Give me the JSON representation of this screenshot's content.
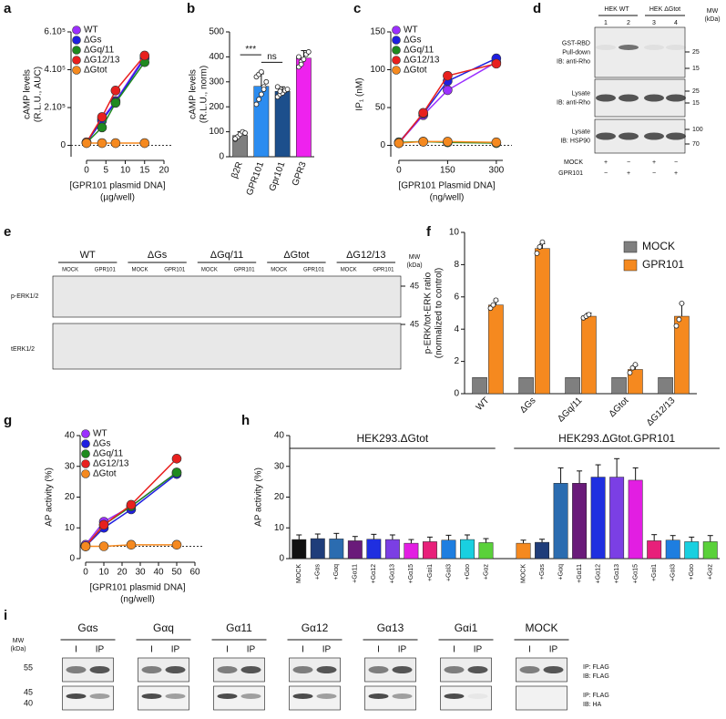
{
  "chart_data": [
    {
      "label": "a",
      "type": "line",
      "ylabel": [
        "cAMP levels",
        "(R.L.U., AUC)"
      ],
      "xlabel": [
        "[GPR101 plasmid DNA]",
        "(µg/well)"
      ],
      "x": [
        0,
        4,
        7.5,
        15
      ],
      "xlim": [
        -4,
        20
      ],
      "xticks": [
        0,
        5,
        10,
        15,
        20
      ],
      "ylim": [
        -60000,
        600000
      ],
      "yticks": [
        0,
        {
          "value": 200000,
          "label": "2.10⁵"
        },
        {
          "value": 400000,
          "label": "4.10⁵"
        },
        {
          "value": 600000,
          "label": "6.10⁵"
        }
      ],
      "hline": 0,
      "legend": "upper left",
      "series": [
        {
          "name": "WT",
          "color": "#9b30ff",
          "values": [
            15000,
            140000,
            235000,
            470000
          ]
        },
        {
          "name": "ΔGs",
          "color": "#1f1fe0",
          "values": [
            15000,
            130000,
            230000,
            460000
          ]
        },
        {
          "name": "ΔGq/11",
          "color": "#1f8a1f",
          "values": [
            14000,
            95000,
            225000,
            440000
          ]
        },
        {
          "name": "ΔG12/13",
          "color": "#e8201e",
          "values": [
            16000,
            150000,
            290000,
            475000
          ]
        },
        {
          "name": "ΔGtot",
          "color": "#f5891f",
          "values": [
            12000,
            12000,
            12000,
            12000
          ]
        }
      ]
    },
    {
      "label": "b",
      "type": "bar",
      "ylabel": [
        "cAMP levels",
        "(R.L.U., norm)"
      ],
      "categories": [
        "β2R",
        "GPR101",
        "Gpr101",
        "GPR3"
      ],
      "values": [
        85,
        282,
        262,
        395
      ],
      "errors": [
        15,
        50,
        18,
        30
      ],
      "colors": [
        "#7f7f7f",
        "#2b8cf0",
        "#1c4f8c",
        "#ee22ee"
      ],
      "points": [
        [
          70,
          80,
          90,
          100,
          95,
          72
        ],
        [
          210,
          230,
          250,
          280,
          300,
          320,
          330,
          340,
          270
        ],
        [
          240,
          250,
          255,
          265,
          270,
          280,
          262
        ],
        [
          360,
          380,
          390,
          410,
          420,
          400,
          370
        ]
      ],
      "ylim": [
        0,
        500
      ],
      "yticks": [
        0,
        100,
        200,
        300,
        400,
        500
      ],
      "annotations": [
        "***",
        "ns"
      ]
    },
    {
      "label": "c",
      "type": "line",
      "ylabel": [
        "IP₁ (nM)"
      ],
      "xlabel": [
        "[GPR101 Plasmid DNA]",
        "(ng/well)"
      ],
      "x": [
        0,
        75,
        150,
        300
      ],
      "xlim": [
        -25,
        320
      ],
      "xticks": [
        0,
        150,
        300
      ],
      "ylim": [
        -15,
        150
      ],
      "yticks": [
        0,
        50,
        100,
        150
      ],
      "hline": 0,
      "legend": "upper left",
      "series": [
        {
          "name": "WT",
          "color": "#9b30ff",
          "values": [
            3,
            40,
            73,
            110
          ]
        },
        {
          "name": "ΔGs",
          "color": "#1f1fe0",
          "values": [
            4,
            42,
            85,
            115
          ]
        },
        {
          "name": "ΔGq/11",
          "color": "#1f8a1f",
          "values": [
            4,
            5,
            4,
            3
          ]
        },
        {
          "name": "ΔG12/13",
          "color": "#e8201e",
          "values": [
            3,
            43,
            92,
            108
          ]
        },
        {
          "name": "ΔGtot",
          "color": "#f5891f",
          "values": [
            3,
            5,
            5,
            4
          ]
        }
      ]
    },
    {
      "label": "f",
      "type": "bar",
      "ylabel": [
        "p-ERK/tot-ERK ratio",
        "(normalized to control)"
      ],
      "categories": [
        "WT",
        "ΔGs",
        "ΔGq/11",
        "ΔGtot",
        "ΔG12/13"
      ],
      "series": [
        {
          "name": "MOCK",
          "color": "#7f7f7f",
          "values": [
            1,
            1,
            1,
            1,
            1
          ]
        },
        {
          "name": "GPR101",
          "color": "#f5891f",
          "values": [
            5.5,
            9,
            4.8,
            1.5,
            4.8
          ],
          "errors": [
            0.25,
            0.3,
            0.2,
            0.25,
            0.8
          ],
          "points": [
            [
              5.3,
              5.5,
              5.8
            ],
            [
              8.7,
              9.1,
              9.4
            ],
            [
              4.7,
              4.8,
              4.9
            ],
            [
              1.3,
              1.6,
              1.8
            ],
            [
              4.2,
              4.6,
              5.6
            ]
          ]
        }
      ],
      "ylim": [
        0,
        10
      ],
      "yticks": [
        0,
        2,
        4,
        6,
        8,
        10
      ],
      "legend": "upper right"
    },
    {
      "label": "g",
      "type": "line",
      "ylabel": [
        "AP activity (%)"
      ],
      "xlabel": [
        "[GPR101 plasmid DNA]",
        "(ng/well)"
      ],
      "x": [
        0,
        10,
        25,
        50
      ],
      "xlim": [
        -3,
        60
      ],
      "xticks": [
        0,
        10,
        20,
        30,
        40,
        50,
        60
      ],
      "ylim": [
        0,
        40
      ],
      "yticks": [
        0,
        10,
        20,
        30,
        40
      ],
      "hline": 4,
      "legend": "upper left",
      "series": [
        {
          "name": "WT",
          "color": "#9b30ff",
          "values": [
            4.5,
            12,
            17,
            28
          ]
        },
        {
          "name": "ΔGs",
          "color": "#1f1fe0",
          "values": [
            4,
            10,
            16,
            27.5
          ]
        },
        {
          "name": "ΔGq/11",
          "color": "#1f8a1f",
          "values": [
            4,
            11,
            17,
            28
          ]
        },
        {
          "name": "ΔG12/13",
          "color": "#e8201e",
          "values": [
            4,
            11,
            17.5,
            32.5
          ]
        },
        {
          "name": "ΔGtot",
          "color": "#f5891f",
          "values": [
            4,
            4,
            4.5,
            4.5
          ]
        }
      ]
    },
    {
      "label": "h",
      "type": "bar",
      "ylabel": [
        "AP activity (%)"
      ],
      "group_labels": [
        "HEK293.ΔGtot",
        "HEK293.ΔGtot.GPR101"
      ],
      "categories": [
        "MOCK",
        "+Gαs",
        "+Gαq",
        "+Gα11",
        "+Gα12",
        "+Gα13",
        "+Gα15",
        "+Gαi1",
        "+Gαi3",
        "+Gαo",
        "+Gαz",
        "MOCK",
        "+Gαs",
        "+Gαq",
        "+Gα11",
        "+Gα12",
        "+Gα13",
        "+Gα15",
        "+Gαi1",
        "+Gαi3",
        "+Gαo",
        "+Gαz"
      ],
      "values": [
        6.2,
        6.5,
        6.4,
        5.8,
        6.3,
        6.2,
        5,
        5.5,
        6,
        6.2,
        5.2,
        5,
        5.3,
        24.5,
        24.5,
        26.5,
        26.5,
        25.5,
        5.8,
        6,
        5.5,
        5.5
      ],
      "errors": [
        1.5,
        1.5,
        1.8,
        1.4,
        1.6,
        1.5,
        1.2,
        1.5,
        1.6,
        1.5,
        1.3,
        1,
        1,
        5,
        4,
        4,
        6,
        4,
        2,
        1.5,
        1.5,
        2
      ],
      "colors": [
        "#111111",
        "#1f3d7a",
        "#2b6cb0",
        "#6a1b7a",
        "#1f2fe0",
        "#7b3fe4",
        "#e21ee2",
        "#e8207a",
        "#1e7ee0",
        "#19d0e0",
        "#5ad13a",
        "#f5891f",
        "#1f3d7a",
        "#2b6cb0",
        "#6a1b7a",
        "#1f2fe0",
        "#7b3fe4",
        "#e21ee2",
        "#e8207a",
        "#1e7ee0",
        "#19d0e0",
        "#5ad13a"
      ],
      "ylim": [
        0,
        40
      ],
      "yticks": [
        0,
        10,
        20,
        30,
        40
      ]
    }
  ],
  "blots": {
    "d": {
      "label": "d",
      "headers": [
        "HEK WT",
        "HEK ΔGtot"
      ],
      "mw_title": [
        "MW",
        "(kDa)"
      ],
      "lanes": [
        "1",
        "2",
        "3",
        "4"
      ],
      "rows": [
        {
          "text": [
            "GST-RBD",
            "Pull-down",
            "IB: anti-Rho"
          ],
          "mw": [
            "25",
            "15"
          ]
        },
        {
          "text": [
            "Lysate",
            "IB: anti-Rho"
          ],
          "mw": [
            "25",
            "15"
          ]
        },
        {
          "text": [
            "Lysate",
            "IB: HSP90"
          ],
          "mw": [
            "100",
            "70"
          ]
        }
      ],
      "conditions": [
        {
          "name": "MOCK",
          "signs": [
            "+",
            "−",
            "+",
            "−"
          ]
        },
        {
          "name": "GPR101",
          "signs": [
            "−",
            "+",
            "−",
            "+"
          ]
        }
      ]
    },
    "e": {
      "label": "e",
      "groups": [
        "WT",
        "ΔGs",
        "ΔGq/11",
        "ΔGtot",
        "ΔG12/13"
      ],
      "lanes": [
        "MOCK",
        "GPR101"
      ],
      "rows": [
        "p-ERK1/2",
        "tERK1/2"
      ],
      "mw_title": [
        "MW",
        "(kDa)"
      ],
      "mw": [
        "45",
        "45"
      ]
    },
    "i": {
      "label": "i",
      "groups": [
        "Gαs",
        "Gαq",
        "Gα11",
        "Gα12",
        "Gα13",
        "Gαi1",
        "MOCK"
      ],
      "lanes": [
        "I",
        "IP"
      ],
      "rows": [
        [
          "IP: FLAG",
          "IB: FLAG"
        ],
        [
          "IP: FLAG",
          "IB: HA"
        ]
      ],
      "mw_title": [
        "MW",
        "(kDa)"
      ],
      "mw": [
        [
          "55"
        ],
        [
          "45",
          "40"
        ]
      ]
    }
  }
}
